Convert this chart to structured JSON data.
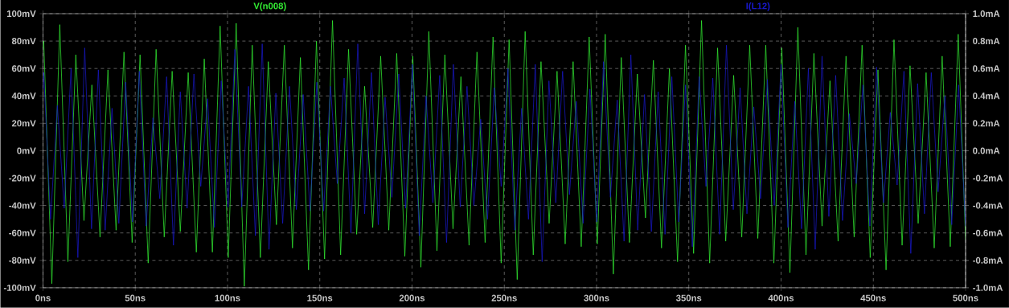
{
  "chart_data": {
    "type": "line",
    "grid": true,
    "marker": "none",
    "line_style": "solid",
    "xlim": [
      0,
      500
    ],
    "xticks": [
      {
        "value": 0,
        "label": "0ns"
      },
      {
        "value": 50,
        "label": "50ns"
      },
      {
        "value": 100,
        "label": "100ns"
      },
      {
        "value": 150,
        "label": "150ns"
      },
      {
        "value": 200,
        "label": "200ns"
      },
      {
        "value": 250,
        "label": "250ns"
      },
      {
        "value": 300,
        "label": "300ns"
      },
      {
        "value": 350,
        "label": "350ns"
      },
      {
        "value": 400,
        "label": "400ns"
      },
      {
        "value": 450,
        "label": "450ns"
      },
      {
        "value": 500,
        "label": "500ns"
      }
    ],
    "ylim": [
      -100,
      100
    ],
    "yticks": [
      {
        "value": -100,
        "label": "-100mV"
      },
      {
        "value": -80,
        "label": "-80mV"
      },
      {
        "value": -60,
        "label": "-60mV"
      },
      {
        "value": -40,
        "label": "-40mV"
      },
      {
        "value": -20,
        "label": "-20mV"
      },
      {
        "value": 0,
        "label": "0mV"
      },
      {
        "value": 20,
        "label": "20mV"
      },
      {
        "value": 40,
        "label": "40mV"
      },
      {
        "value": 60,
        "label": "60mV"
      },
      {
        "value": 80,
        "label": "80mV"
      },
      {
        "value": 100,
        "label": "100mV"
      }
    ],
    "y2lim": [
      -1.0,
      1.0
    ],
    "y2ticks": [
      {
        "value": -1.0,
        "label": "-1.0mA"
      },
      {
        "value": -0.8,
        "label": "-0.8mA"
      },
      {
        "value": -0.6,
        "label": "-0.6mA"
      },
      {
        "value": -0.4,
        "label": "-0.4mA"
      },
      {
        "value": -0.2,
        "label": "-0.2mA"
      },
      {
        "value": 0,
        "label": "0.0mA"
      },
      {
        "value": 0.2,
        "label": "0.2mA"
      },
      {
        "value": 0.4,
        "label": "0.4mA"
      },
      {
        "value": 0.6,
        "label": "0.6mA"
      },
      {
        "value": 0.8,
        "label": "0.8mA"
      },
      {
        "value": 1.0,
        "label": "1.0mA"
      }
    ],
    "series": [
      {
        "name": "V(n008)",
        "color": "#33ee33",
        "x": [
          0,
          0.4,
          4.8,
          9.1,
          13.5,
          17.8,
          22.2,
          26.5,
          30.9,
          35.2,
          39.6,
          43.9,
          48.3,
          52.6,
          57.0,
          61.3,
          65.7,
          70.0,
          74.4,
          78.7,
          83.1,
          87.4,
          91.8,
          96.0,
          100.4,
          104.7,
          109.1,
          113.4,
          117.8,
          122.1,
          126.5,
          130.8,
          135.2,
          139.5,
          143.9,
          148.2,
          152.6,
          156.9,
          161.3,
          165.6,
          170.0,
          174.3,
          178.7,
          183.0,
          187.4,
          191.7,
          196.1,
          200.4,
          204.8,
          209.1,
          213.5,
          217.8,
          222.2,
          226.5,
          230.9,
          235.2,
          239.6,
          243.9,
          248.3,
          252.6,
          257.0,
          261.3,
          265.7,
          269.9,
          274.3,
          278.6,
          283.0,
          287.3,
          291.7,
          296.0,
          300.4,
          304.7,
          309.1,
          313.4,
          317.8,
          322.1,
          326.5,
          330.8,
          335.2,
          339.5,
          343.9,
          348.2,
          352.6,
          356.9,
          361.3,
          365.6,
          370.0,
          374.3,
          378.7,
          383.0,
          387.4,
          391.7,
          396.1,
          400.4,
          404.8,
          409.1,
          413.5,
          417.8,
          422.2,
          426.5,
          430.9,
          435.2,
          439.6,
          443.9,
          448.3,
          452.5,
          456.9,
          461.2,
          465.6,
          469.9,
          474.3,
          478.6,
          483.0,
          487.3,
          491.7,
          496.0,
          500
        ],
        "values": [
          75,
          80,
          -97,
          92,
          -81,
          70,
          -51,
          48,
          -63,
          59,
          -58,
          72,
          -67,
          70,
          -82,
          74,
          -63,
          58,
          -59,
          57,
          -74,
          67,
          -74,
          91,
          -78,
          93,
          -99,
          77,
          -78,
          65,
          -54,
          77,
          -71,
          68,
          -87,
          80,
          -79,
          95,
          -76,
          74,
          -61,
          47,
          -56,
          69,
          -58,
          71,
          -77,
          69,
          -85,
          87,
          -73,
          70,
          -57,
          54,
          -69,
          72,
          -67,
          83,
          -82,
          81,
          -94,
          87,
          -76,
          65,
          -53,
          58,
          -68,
          65,
          -70,
          83,
          -68,
          85,
          -90,
          68,
          -67,
          56,
          -49,
          66,
          -71,
          60,
          -81,
          77,
          -75,
          95,
          -82,
          75,
          -66,
          55,
          -63,
          77,
          -64,
          77,
          -82,
          75,
          -89,
          90,
          -76,
          71,
          -55,
          51,
          -66,
          69,
          -63,
          77,
          -78,
          59,
          -87,
          81,
          -69,
          62,
          -53,
          57,
          -71,
          69,
          -70,
          85,
          -65
        ]
      },
      {
        "name": "I(L12)",
        "color": "#1818c8",
        "axis": "y2",
        "x": [
          0,
          0.4,
          4.1,
          7.8,
          11.5,
          15.2,
          18.9,
          22.6,
          26.3,
          30.0,
          33.7,
          37.4,
          41.1,
          44.8,
          48.5,
          52.2,
          55.9,
          59.6,
          63.3,
          67.0,
          70.7,
          74.4,
          78.1,
          81.8,
          85.5,
          89.2,
          92.9,
          96.6,
          100.3,
          104.0,
          107.7,
          111.4,
          115.1,
          118.8,
          122.5,
          126.2,
          129.9,
          133.6,
          137.3,
          141.0,
          144.7,
          148.4,
          152.1,
          155.8,
          159.5,
          163.2,
          166.9,
          170.6,
          174.3,
          178.0,
          181.7,
          185.4,
          189.1,
          192.8,
          196.5,
          200.2,
          203.9,
          207.6,
          211.3,
          215.0,
          218.7,
          222.4,
          226.1,
          229.8,
          233.5,
          237.2,
          240.9,
          244.6,
          248.3,
          252.0,
          255.7,
          259.4,
          263.1,
          266.8,
          270.5,
          274.2,
          277.9,
          281.6,
          285.3,
          289.0,
          292.7,
          296.4,
          300.1,
          303.8,
          307.5,
          311.2,
          314.9,
          318.6,
          322.3,
          326.0,
          329.7,
          333.4,
          337.1,
          340.8,
          344.5,
          348.2,
          351.9,
          355.6,
          359.3,
          363.0,
          366.7,
          370.4,
          374.1,
          377.8,
          381.5,
          385.2,
          388.9,
          392.6,
          396.3,
          400.0,
          403.7,
          407.4,
          411.1,
          414.8,
          418.5,
          422.2,
          425.9,
          429.6,
          433.3,
          437.0,
          440.7,
          444.4,
          448.1,
          451.8,
          455.5,
          459.2,
          462.9,
          466.6,
          470.3,
          474.0,
          477.7,
          481.4,
          485.1,
          488.8,
          492.5,
          496.2,
          500
        ],
        "values": [
          0.45,
          0.57,
          -0.5,
          0.33,
          -0.42,
          0.6,
          -0.78,
          0.75,
          -0.57,
          0.59,
          -0.58,
          0.31,
          -0.53,
          0.5,
          -0.52,
          0.58,
          -0.55,
          0.24,
          -0.35,
          0.54,
          -0.69,
          0.43,
          -0.42,
          0.56,
          -0.26,
          0.38,
          -0.56,
          0.51,
          -0.41,
          0.74,
          -0.41,
          0.47,
          -0.62,
          0.78,
          -0.72,
          0.42,
          -0.53,
          0.47,
          -0.43,
          0.41,
          -0.44,
          0.5,
          -0.44,
          0.47,
          -0.24,
          0.53,
          -0.6,
          0.78,
          -0.46,
          0.57,
          -0.54,
          0.39,
          -0.34,
          0.56,
          -0.42,
          0.63,
          -0.62,
          0.4,
          -0.38,
          0.55,
          -0.67,
          0.63,
          -0.41,
          0.47,
          -0.4,
          0.23,
          -0.5,
          0.46,
          -0.26,
          0.6,
          -0.58,
          0.31,
          -0.5,
          0.63,
          -0.81,
          0.51,
          -0.38,
          0.58,
          -0.32,
          0.36,
          -0.53,
          0.45,
          -0.52,
          0.65,
          -0.34,
          0.37,
          -0.66,
          0.7,
          -0.58,
          0.41,
          -0.59,
          0.43,
          -0.61,
          0.54,
          -0.52,
          0.48,
          -0.7,
          0.54,
          -0.26,
          0.53,
          -0.61,
          0.77,
          -0.43,
          0.46,
          -0.46,
          0.32,
          -0.35,
          0.52,
          -0.4,
          0.63,
          -0.56,
          0.36,
          -0.57,
          0.6,
          -0.72,
          0.69,
          -0.48,
          0.55,
          -0.51,
          0.27,
          -0.24,
          0.48,
          -0.55,
          0.61,
          -0.38,
          0.28,
          -0.25,
          0.58,
          -0.75,
          0.49,
          -0.46,
          0.57,
          -0.3,
          0.4,
          -0.54,
          0.48,
          -0.55
        ]
      }
    ]
  }
}
